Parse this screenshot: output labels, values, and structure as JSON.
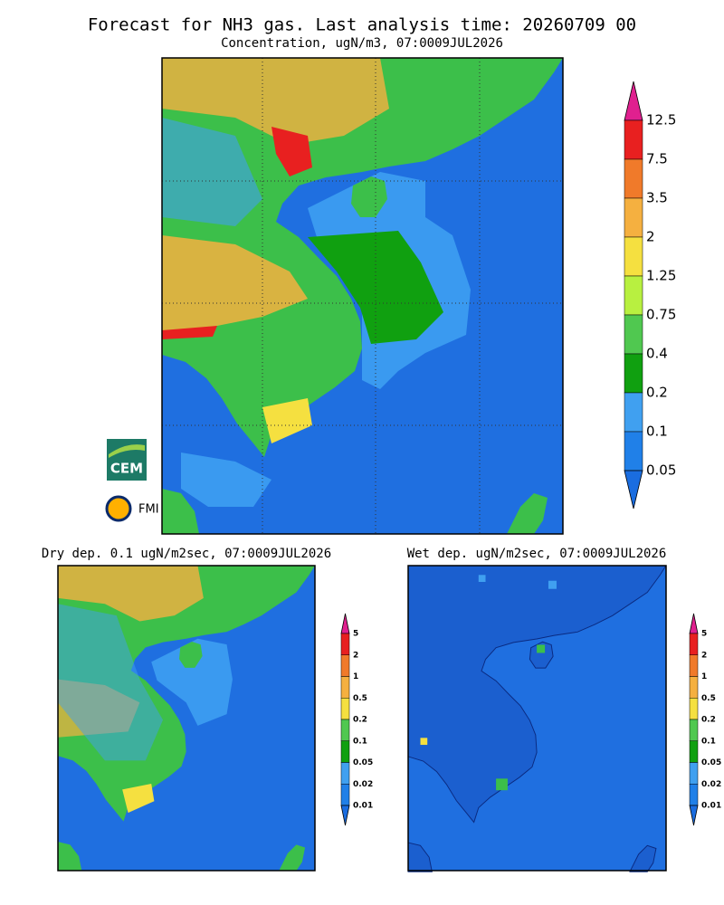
{
  "header": {
    "title": "Forecast for NH3 gas. Last analysis time: 20260709 00",
    "subtitle": "Concentration, ugN/m3, 07:0009JUL2026"
  },
  "main_colorbar": {
    "labels": [
      "12.5",
      "7.5",
      "3.5",
      "2",
      "1.25",
      "0.75",
      "0.4",
      "0.2",
      "0.1",
      "0.05"
    ],
    "colors": [
      "#e0208f",
      "#e82020",
      "#f07a2a",
      "#f5b040",
      "#f5e040",
      "#b8f040",
      "#50c850",
      "#10a010",
      "#40a0f0",
      "#2080e8",
      "#1a6de0"
    ]
  },
  "dry_panel": {
    "title": "Dry dep. 0.1 ugN/m2sec, 07:0009JUL2026",
    "labels": [
      "5",
      "2",
      "1",
      "0.5",
      "0.2",
      "0.1",
      "0.05",
      "0.02",
      "0.01"
    ],
    "colors": [
      "#e0208f",
      "#e82020",
      "#f07a2a",
      "#f5b040",
      "#f5e040",
      "#50c850",
      "#10a010",
      "#40a0f0",
      "#2080e8",
      "#1a6de0"
    ]
  },
  "wet_panel": {
    "title": "Wet dep. ugN/m2sec, 07:0009JUL2026",
    "labels": [
      "5",
      "2",
      "1",
      "0.5",
      "0.2",
      "0.1",
      "0.05",
      "0.02",
      "0.01"
    ],
    "colors": [
      "#e0208f",
      "#e82020",
      "#f07a2a",
      "#f5b040",
      "#f5e040",
      "#50c850",
      "#10a010",
      "#40a0f0",
      "#2080e8",
      "#1a6de0"
    ]
  },
  "logos": {
    "cem": "CEM",
    "fmi": "FMI"
  }
}
